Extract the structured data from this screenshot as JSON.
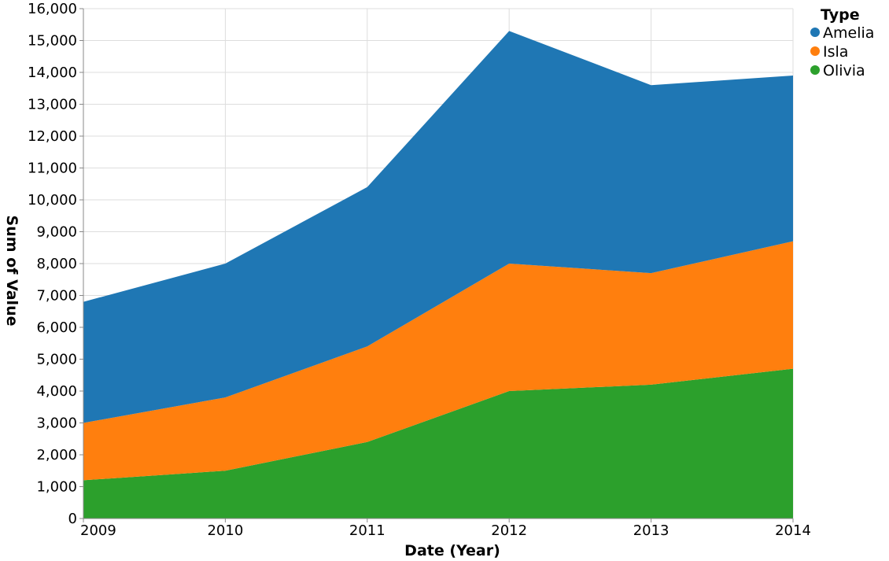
{
  "chart_data": {
    "type": "area",
    "stacked": true,
    "x": [
      "2009",
      "2010",
      "2011",
      "2012",
      "2013",
      "2014"
    ],
    "series": [
      {
        "name": "Olivia",
        "color": "#2ca02c",
        "values": [
          1200,
          1500,
          2400,
          4000,
          4200,
          4700
        ]
      },
      {
        "name": "Isla",
        "color": "#ff7f0e",
        "values": [
          1800,
          2300,
          3000,
          4000,
          3500,
          4000
        ]
      },
      {
        "name": "Amelia",
        "color": "#1f77b4",
        "values": [
          3800,
          4200,
          5000,
          7300,
          5900,
          5200
        ]
      }
    ],
    "legend_order": [
      "Amelia",
      "Isla",
      "Olivia"
    ],
    "xlabel": "Date (Year)",
    "ylabel": "Sum of Value",
    "ylim": [
      0,
      16000
    ],
    "yticks": [
      "0",
      "1,000",
      "2,000",
      "3,000",
      "4,000",
      "5,000",
      "6,000",
      "7,000",
      "8,000",
      "9,000",
      "10,000",
      "11,000",
      "12,000",
      "13,000",
      "14,000",
      "15,000",
      "16,000"
    ],
    "legend_title": "Type",
    "legend_position": "top-right",
    "grid": true
  }
}
